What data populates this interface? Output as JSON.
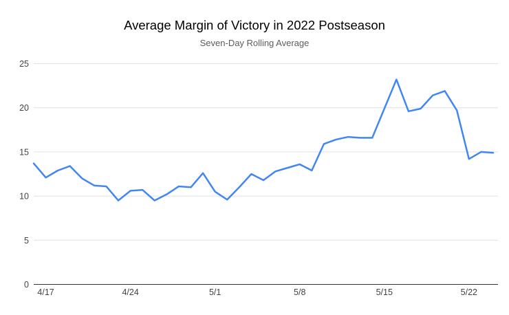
{
  "chart_data": {
    "type": "line",
    "title": "Average Margin of Victory in 2022 Postseason",
    "subtitle": "Seven-Day Rolling Average",
    "x": [
      "4/16",
      "4/17",
      "4/18",
      "4/19",
      "4/20",
      "4/21",
      "4/22",
      "4/23",
      "4/24",
      "4/25",
      "4/26",
      "4/27",
      "4/28",
      "4/29",
      "4/30",
      "5/1",
      "5/2",
      "5/3",
      "5/4",
      "5/5",
      "5/6",
      "5/7",
      "5/8",
      "5/9",
      "5/10",
      "5/11",
      "5/12",
      "5/13",
      "5/14",
      "5/15",
      "5/16",
      "5/17",
      "5/18",
      "5/19",
      "5/20",
      "5/21",
      "5/22",
      "5/23",
      "5/24"
    ],
    "values": [
      13.7,
      12.1,
      12.9,
      13.4,
      12.0,
      11.2,
      11.1,
      9.5,
      10.6,
      10.7,
      9.5,
      10.2,
      11.1,
      11.0,
      12.6,
      10.5,
      9.6,
      11.0,
      12.5,
      11.8,
      12.8,
      13.2,
      13.6,
      12.9,
      15.9,
      16.4,
      16.7,
      16.6,
      16.6,
      19.9,
      23.2,
      19.6,
      19.9,
      21.4,
      21.9,
      19.7,
      14.2,
      15.0,
      14.9
    ],
    "x_tick_labels": [
      "4/17",
      "4/24",
      "5/1",
      "5/8",
      "5/15",
      "5/22"
    ],
    "x_tick_indices": [
      1,
      8,
      15,
      22,
      29,
      36
    ],
    "y_ticks": [
      0,
      5,
      10,
      15,
      20,
      25
    ],
    "ylim": [
      0,
      25
    ],
    "grid": true,
    "legend_position": "none",
    "colors": {
      "line": "#4285f4",
      "grid": "#e0e0e0",
      "axis": "#333333",
      "tick_label": "#424242",
      "title": "#000000",
      "subtitle": "#5c5c5c",
      "background": "#ffffff"
    }
  }
}
